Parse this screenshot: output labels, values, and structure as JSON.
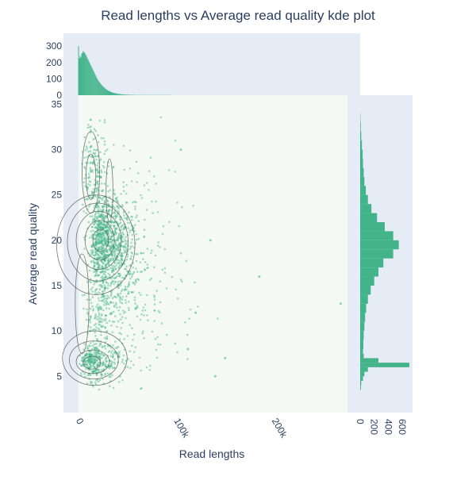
{
  "chart_data": {
    "type": "scatter",
    "title": "Read lengths vs Average read quality kde plot",
    "xlabel": "Read lengths",
    "ylabel": "Average read quality",
    "xlim": [
      -15000,
      275000
    ],
    "ylim": [
      1,
      36
    ],
    "x_ticks": [
      {
        "value": 0,
        "label": "0"
      },
      {
        "value": 100000,
        "label": "100k"
      },
      {
        "value": 200000,
        "label": "200k"
      }
    ],
    "y_ticks": [
      {
        "value": 5,
        "label": "5"
      },
      {
        "value": 10,
        "label": "10"
      },
      {
        "value": 15,
        "label": "15"
      },
      {
        "value": 20,
        "label": "20"
      },
      {
        "value": 25,
        "label": "25"
      },
      {
        "value": 30,
        "label": "30"
      },
      {
        "value": 35,
        "label": "35"
      }
    ],
    "top_hist": {
      "ylim": [
        0,
        320
      ],
      "y_ticks": [
        {
          "value": 0,
          "label": "0"
        },
        {
          "value": 100,
          "label": "100"
        },
        {
          "value": 200,
          "label": "200"
        },
        {
          "value": 300,
          "label": "300"
        }
      ],
      "bin_width": 800,
      "values": [
        300,
        225,
        240,
        230,
        255,
        260,
        270,
        262,
        258,
        250,
        240,
        230,
        220,
        210,
        200,
        190,
        180,
        170,
        160,
        150,
        140,
        130,
        120,
        110,
        100,
        92,
        85,
        78,
        72,
        66,
        60,
        55,
        50,
        46,
        42,
        38,
        34,
        31,
        28,
        25,
        23,
        21,
        19,
        17,
        15,
        14,
        13,
        12,
        11,
        10,
        9,
        8,
        8,
        7,
        6,
        6,
        5,
        5,
        4,
        4,
        4,
        3,
        3,
        3,
        3,
        2,
        2,
        2,
        2,
        2,
        2,
        2,
        1,
        1,
        1,
        1,
        1,
        1,
        1,
        1,
        1,
        1,
        1,
        1,
        1,
        1,
        1,
        1,
        1,
        1,
        1,
        1,
        1,
        1,
        1,
        1,
        1,
        1,
        1,
        1,
        1,
        1,
        1,
        1,
        1,
        1,
        1,
        1,
        1,
        1,
        1,
        1,
        1,
        1,
        1,
        1,
        1,
        1,
        1,
        1
      ]
    },
    "right_hist": {
      "xlim": [
        0,
        700
      ],
      "x_ticks": [
        {
          "value": 0,
          "label": "0"
        },
        {
          "value": 200,
          "label": "200"
        },
        {
          "value": 400,
          "label": "400"
        },
        {
          "value": 600,
          "label": "600"
        }
      ],
      "bins": [
        {
          "q0": 3.5,
          "q1": 4.0,
          "count": 10
        },
        {
          "q0": 4.0,
          "count": 15,
          "q1": 4.5
        },
        {
          "q0": 4.5,
          "q1": 5.0,
          "count": 40
        },
        {
          "q0": 5.0,
          "q1": 5.5,
          "count": 60
        },
        {
          "q0": 5.5,
          "q1": 6.0,
          "count": 110
        },
        {
          "q0": 6.0,
          "q1": 6.5,
          "count": 700
        },
        {
          "q0": 6.5,
          "q1": 7.0,
          "count": 260
        },
        {
          "q0": 7.0,
          "q1": 7.5,
          "count": 50
        },
        {
          "q0": 7.5,
          "q1": 8.0,
          "count": 40
        },
        {
          "q0": 8.0,
          "q1": 9.0,
          "count": 45
        },
        {
          "q0": 9.0,
          "q1": 10.0,
          "count": 50
        },
        {
          "q0": 10.0,
          "q1": 11.0,
          "count": 60
        },
        {
          "q0": 11.0,
          "q1": 12.0,
          "count": 70
        },
        {
          "q0": 12.0,
          "q1": 13.0,
          "count": 85
        },
        {
          "q0": 13.0,
          "q1": 14.0,
          "count": 110
        },
        {
          "q0": 14.0,
          "q1": 15.0,
          "count": 150
        },
        {
          "q0": 15.0,
          "q1": 16.0,
          "count": 200
        },
        {
          "q0": 16.0,
          "q1": 17.0,
          "count": 260
        },
        {
          "q0": 17.0,
          "q1": 18.0,
          "count": 330
        },
        {
          "q0": 18.0,
          "q1": 19.0,
          "count": 470
        },
        {
          "q0": 19.0,
          "q1": 20.0,
          "count": 550
        },
        {
          "q0": 20.0,
          "q1": 21.0,
          "count": 470
        },
        {
          "q0": 21.0,
          "q1": 22.0,
          "count": 350
        },
        {
          "q0": 22.0,
          "q1": 23.0,
          "count": 240
        },
        {
          "q0": 23.0,
          "q1": 24.0,
          "count": 160
        },
        {
          "q0": 24.0,
          "q1": 25.0,
          "count": 110
        },
        {
          "q0": 25.0,
          "q1": 26.0,
          "count": 80
        },
        {
          "q0": 26.0,
          "q1": 27.0,
          "count": 60
        },
        {
          "q0": 27.0,
          "q1": 28.0,
          "count": 50
        },
        {
          "q0": 28.0,
          "q1": 29.0,
          "count": 40
        },
        {
          "q0": 29.0,
          "q1": 30.0,
          "count": 35
        },
        {
          "q0": 30.0,
          "q1": 31.0,
          "count": 25
        },
        {
          "q0": 31.0,
          "q1": 32.0,
          "count": 15
        },
        {
          "q0": 32.0,
          "q1": 33.0,
          "count": 8
        },
        {
          "q0": 33.0,
          "q1": 34.0,
          "count": 4
        }
      ]
    },
    "scatter_clusters": [
      {
        "cx": 22000,
        "cy": 20,
        "sx": 16000,
        "sy": 2.5,
        "n": 900
      },
      {
        "cx": 12000,
        "cy": 6.5,
        "sx": 14000,
        "sy": 1.0,
        "n": 320
      },
      {
        "cx": 18000,
        "cy": 13,
        "sx": 18000,
        "sy": 3.5,
        "n": 300
      },
      {
        "cx": 12000,
        "cy": 28,
        "sx": 10000,
        "sy": 2.5,
        "n": 160
      },
      {
        "cx": 50000,
        "cy": 16,
        "sx": 28000,
        "sy": 6,
        "n": 240
      }
    ],
    "outliers": [
      {
        "x": 185000,
        "y": 16
      },
      {
        "x": 268000,
        "y": 13
      },
      {
        "x": 150000,
        "y": 7
      },
      {
        "x": 140000,
        "y": 5
      },
      {
        "x": 135000,
        "y": 20
      },
      {
        "x": 105000,
        "y": 30
      },
      {
        "x": 120000,
        "y": 12
      },
      {
        "x": 112000,
        "y": 8
      }
    ],
    "kde_contours": [
      {
        "cx": 18000,
        "cy": 19.5,
        "rx": 40000,
        "ry": 5.5
      },
      {
        "cx": 20000,
        "cy": 19.8,
        "rx": 31000,
        "ry": 4.3
      },
      {
        "cx": 21000,
        "cy": 20,
        "rx": 23000,
        "ry": 3.2
      },
      {
        "cx": 22000,
        "cy": 20,
        "rx": 15000,
        "ry": 2.2
      },
      {
        "cx": 23000,
        "cy": 20,
        "rx": 8000,
        "ry": 1.2
      },
      {
        "cx": 17000,
        "cy": 7,
        "rx": 33000,
        "ry": 3.0
      },
      {
        "cx": 16000,
        "cy": 6.8,
        "rx": 25000,
        "ry": 2.1
      },
      {
        "cx": 15000,
        "cy": 6.6,
        "rx": 17000,
        "ry": 1.3
      },
      {
        "cx": 14000,
        "cy": 6.5,
        "rx": 9000,
        "ry": 0.7
      },
      {
        "cx": 13000,
        "cy": 27.5,
        "rx": 9000,
        "ry": 4.5
      },
      {
        "cx": 13000,
        "cy": 27,
        "rx": 5000,
        "ry": 2.5
      },
      {
        "cx": 32000,
        "cy": 25.5,
        "rx": 3500,
        "ry": 3.5
      },
      {
        "cx": 4000,
        "cy": 13,
        "rx": 7000,
        "ry": 5.5
      }
    ],
    "colors": {
      "marker": "#43b48a",
      "hist": "#43b48a",
      "contour": "#555555",
      "plot_bg": "#f4faf3",
      "hist_bg": "#e5ecf6",
      "text": "#2a3f5f"
    }
  }
}
